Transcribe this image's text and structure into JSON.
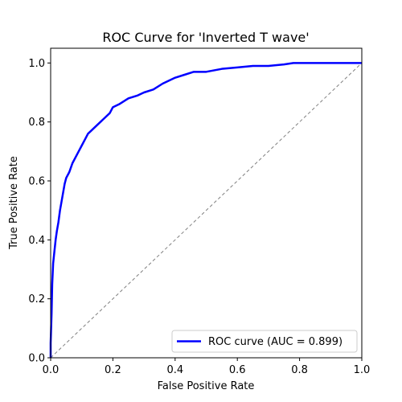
{
  "chart_data": {
    "type": "line",
    "title": "ROC Curve for 'Inverted T wave'",
    "xlabel": "False Positive Rate",
    "ylabel": "True Positive Rate",
    "xlim": [
      0.0,
      1.0
    ],
    "ylim": [
      0.0,
      1.05
    ],
    "xticks": [
      "0.0",
      "0.2",
      "0.4",
      "0.6",
      "0.8",
      "1.0"
    ],
    "yticks": [
      "0.0",
      "0.2",
      "0.4",
      "0.6",
      "0.8",
      "1.0"
    ],
    "grid": false,
    "legend_position": "lower-right",
    "series": [
      {
        "name": "ROC curve (AUC = 0.899)",
        "color": "#0000ff",
        "style": "solid",
        "x": [
          0.0,
          0.0,
          0.003,
          0.005,
          0.008,
          0.012,
          0.016,
          0.02,
          0.025,
          0.03,
          0.035,
          0.04,
          0.045,
          0.05,
          0.06,
          0.07,
          0.08,
          0.09,
          0.1,
          0.11,
          0.12,
          0.13,
          0.15,
          0.17,
          0.19,
          0.2,
          0.22,
          0.25,
          0.28,
          0.3,
          0.33,
          0.36,
          0.4,
          0.43,
          0.46,
          0.5,
          0.55,
          0.6,
          0.65,
          0.7,
          0.75,
          0.78,
          0.85,
          0.9,
          1.0
        ],
        "y": [
          0.0,
          0.05,
          0.15,
          0.25,
          0.32,
          0.36,
          0.4,
          0.43,
          0.46,
          0.5,
          0.53,
          0.56,
          0.59,
          0.61,
          0.63,
          0.66,
          0.68,
          0.7,
          0.72,
          0.74,
          0.76,
          0.77,
          0.79,
          0.81,
          0.83,
          0.85,
          0.86,
          0.88,
          0.89,
          0.9,
          0.91,
          0.93,
          0.95,
          0.96,
          0.97,
          0.97,
          0.98,
          0.985,
          0.99,
          0.99,
          0.995,
          1.0,
          1.0,
          1.0,
          1.0
        ]
      },
      {
        "color": "#808080",
        "style": "dashed",
        "x": [
          0.0,
          1.0
        ],
        "y": [
          0.0,
          1.0
        ]
      }
    ],
    "legend": [
      {
        "label": "ROC curve (AUC = 0.899)",
        "color": "#0000ff"
      }
    ]
  }
}
